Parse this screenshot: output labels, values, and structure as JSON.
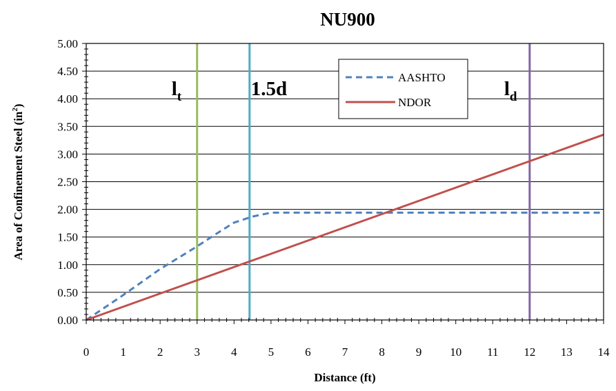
{
  "chart_data": {
    "type": "line",
    "title": "NU900",
    "xlabel": "Distance (ft)",
    "ylabel": "Area of Confinement Steel (in",
    "ylabel_sup": "2",
    "ylabel_end": ")",
    "xlim": [
      0,
      14
    ],
    "ylim": [
      0,
      5
    ],
    "x_ticks": [
      "0",
      "1",
      "2",
      "3",
      "4",
      "5",
      "6",
      "7",
      "8",
      "9",
      "10",
      "11",
      "12",
      "13",
      "14"
    ],
    "y_ticks": [
      "0.00",
      "0.50",
      "1.00",
      "1.50",
      "2.00",
      "2.50",
      "3.00",
      "3.50",
      "4.00",
      "4.50",
      "5.00"
    ],
    "grid": "horizontal",
    "legend_position": "top-center",
    "series": [
      {
        "name": "AASHTO",
        "color": "#4f81bd",
        "style": "dashed",
        "x": [
          0,
          1,
          2,
          3,
          3.5,
          4,
          4.5,
          5,
          14
        ],
        "y": [
          0,
          0.45,
          0.92,
          1.33,
          1.55,
          1.76,
          1.87,
          1.94,
          1.94
        ]
      },
      {
        "name": "NDOR",
        "color": "#c0504d",
        "style": "solid",
        "x": [
          0,
          14
        ],
        "y": [
          0,
          3.35
        ]
      }
    ],
    "vertical_markers": [
      {
        "x": 3,
        "label": "l",
        "sub": "t",
        "color": "#9bbb59"
      },
      {
        "x": 4.42,
        "label": "1.5d",
        "sub": "",
        "color": "#4bacc6"
      },
      {
        "x": 12,
        "label": "l",
        "sub": "d",
        "color": "#8064a2"
      }
    ]
  }
}
